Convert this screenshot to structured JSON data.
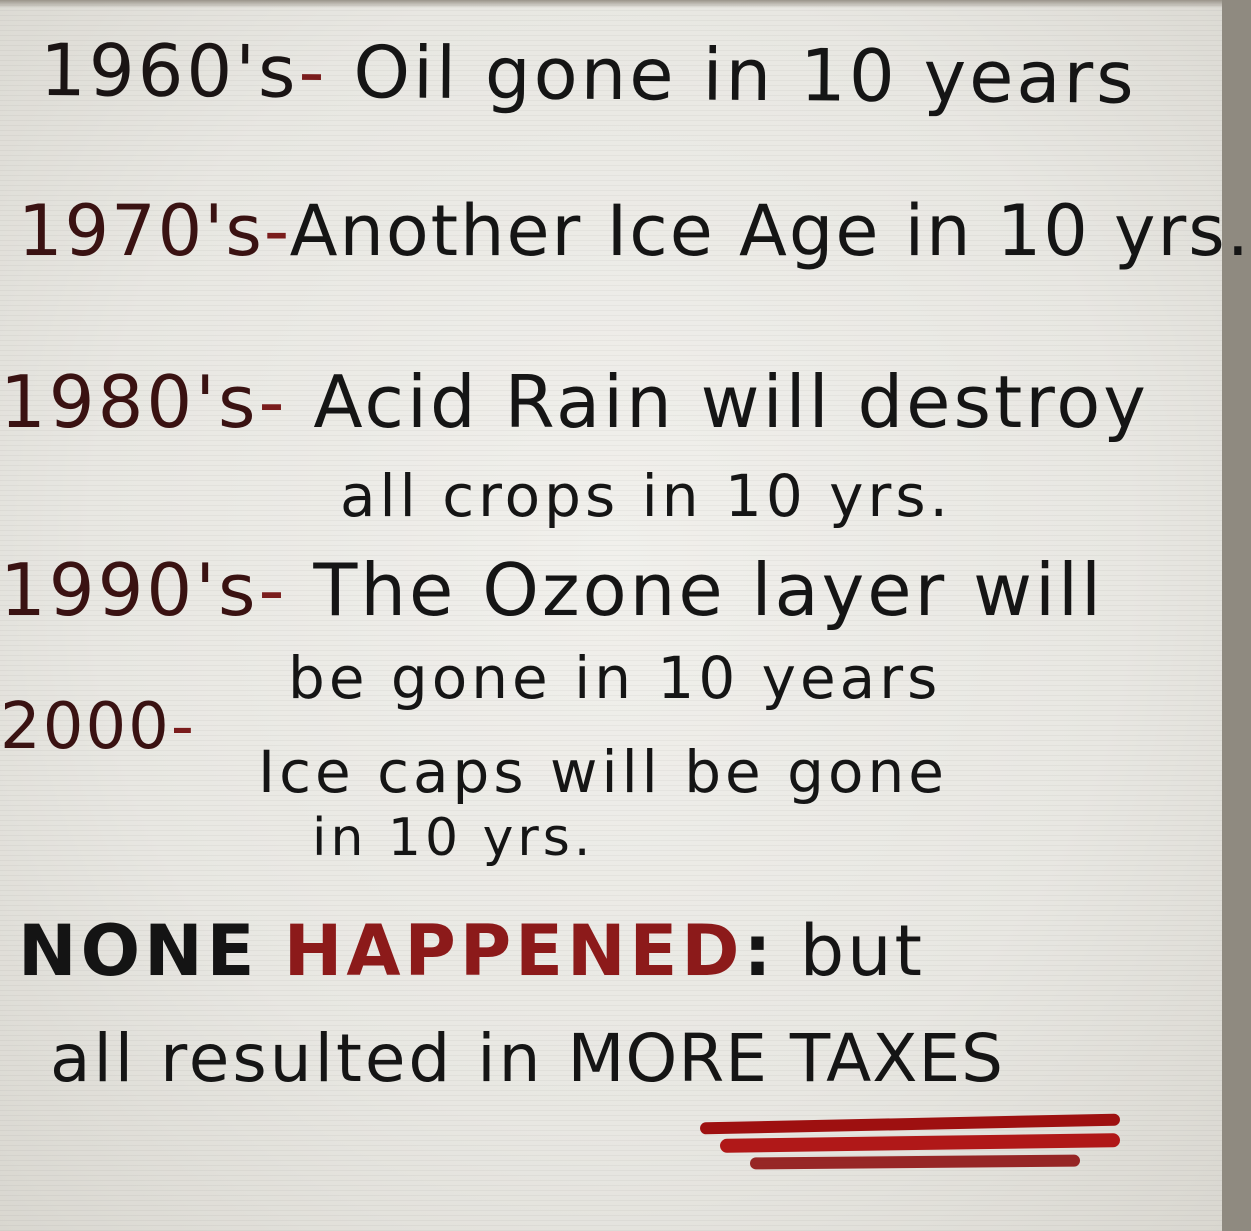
{
  "sign": {
    "lines": [
      {
        "era": "1960's",
        "sep": "-",
        "text": "Oil gone in 10 years"
      },
      {
        "era": "1970's",
        "sep": "-",
        "text": "Another Ice Age in 10 yrs."
      },
      {
        "era": "1980's",
        "sep": "-",
        "text": "Acid Rain will destroy",
        "cont": "all crops in 10 yrs."
      },
      {
        "era": "1990's",
        "sep": "-",
        "text": "The Ozone layer will",
        "cont": "be gone in 10 years"
      },
      {
        "era": "2000",
        "sep": "-",
        "text": "Ice caps will be gone",
        "cont": "in 10 yrs."
      }
    ],
    "conclusion": {
      "none": "NONE",
      "happened": "HAPPENED",
      "colon": ":",
      "but": "but",
      "line2_text": "all resulted in",
      "emphasis": "MORE TAXES"
    }
  },
  "colors": {
    "ink": "#151515",
    "red_ink": "#8c1a1a",
    "underline": "#a01414",
    "board": "#ecebe6"
  }
}
